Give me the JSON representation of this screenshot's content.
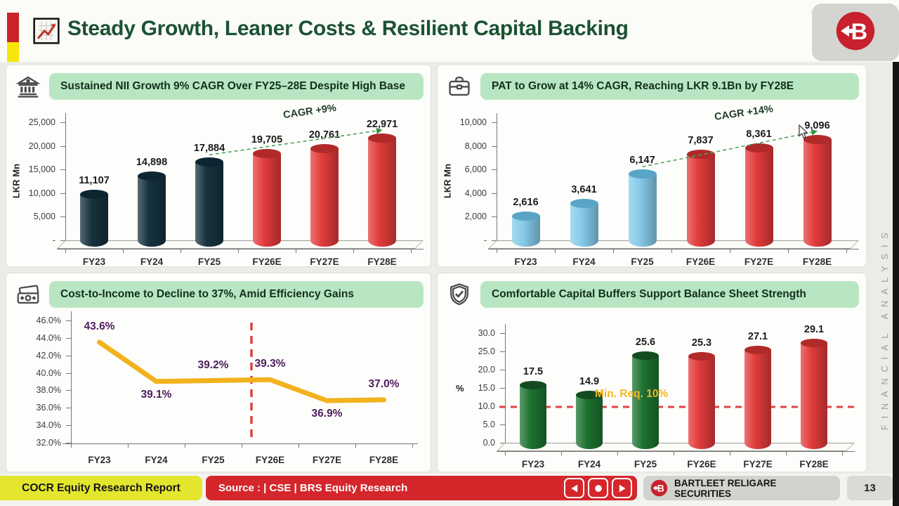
{
  "header": {
    "title": "Steady Growth, Leaner Costs & Resilient Capital Backing",
    "emblem_icon": "growth-chart-icon",
    "logo_icon": "bartleet-logo-icon"
  },
  "side_label": "FINANCIAL ANALYSIS",
  "colors": {
    "accent_red": "#c92429",
    "accent_yellow": "#f6e60a",
    "title_green": "#1b5233",
    "pill_green": "#b9e6c2",
    "footer_red": "#d5262c",
    "footer_yellow": "#e4e62e"
  },
  "footer": {
    "report_label": "COCR Equity Research Report",
    "source_label": "Source : | CSE | BRS Equity Research",
    "brand_label": "BARTLEET RELIGARE SECURITIES",
    "page_number": "13",
    "nav_icons": [
      "prev-icon",
      "stop-icon",
      "next-icon"
    ]
  },
  "chart_data": [
    {
      "id": "nii-growth",
      "type": "bar",
      "icon": "bank-icon",
      "title": "Sustained NII Growth 9% CAGR Over FY25–28E Despite High Base",
      "ylabel": "LKR Mn",
      "xlabel": "",
      "categories": [
        "FY23",
        "FY24",
        "FY25",
        "FY26E",
        "FY27E",
        "FY28E"
      ],
      "values": [
        11107,
        14898,
        17884,
        19705,
        20761,
        22971
      ],
      "labels": [
        "11,107",
        "14,898",
        "17,884",
        "19,705",
        "20,761",
        "22,971"
      ],
      "ylim": [
        0,
        25000
      ],
      "yticks": [
        "25,000",
        "20,000",
        "15,000",
        "10,000",
        "5,000",
        "-"
      ],
      "actual_count": 3,
      "colors": {
        "actual": "#16323e",
        "actual_cap": "#0d2530",
        "forecast": "#e23b3b",
        "forecast_cap": "#b02a2a"
      },
      "trend": {
        "from": 2,
        "to": 5,
        "label": "CAGR +9%"
      },
      "grid": false,
      "legend": "none"
    },
    {
      "id": "pat-growth",
      "type": "bar",
      "icon": "briefcase-icon",
      "title": "PAT to Grow at 14% CAGR, Reaching LKR 9.1Bn by FY28E",
      "ylabel": "LKR Mn",
      "xlabel": "",
      "categories": [
        "FY23",
        "FY24",
        "FY25",
        "FY26E",
        "FY27E",
        "FY28E"
      ],
      "values": [
        2616,
        3641,
        6147,
        7837,
        8361,
        9096
      ],
      "labels": [
        "2,616",
        "3,641",
        "6,147",
        "7,837",
        "8,361",
        "9,096"
      ],
      "ylim": [
        0,
        10000
      ],
      "yticks": [
        "10,000",
        "8,000",
        "6,000",
        "4,000",
        "2,000",
        "-"
      ],
      "actual_count": 3,
      "colors": {
        "actual": "#85cbe9",
        "actual_cap": "#58a5c8",
        "forecast": "#e23b3b",
        "forecast_cap": "#b02a2a"
      },
      "trend": {
        "from": 2,
        "to": 5,
        "label": "CAGR +14%"
      },
      "cursor": true,
      "grid": false,
      "legend": "none"
    },
    {
      "id": "cost-to-income",
      "type": "line",
      "icon": "cash-icon",
      "title": "Cost-to-Income to Decline to 37%, Amid Efficiency Gains",
      "ylabel": "",
      "xlabel": "",
      "categories": [
        "FY23",
        "FY24",
        "FY25",
        "FY26E",
        "FY27E",
        "FY28E"
      ],
      "values": [
        43.6,
        39.1,
        39.2,
        39.3,
        36.9,
        37.0
      ],
      "labels": [
        "43.6%",
        "39.1%",
        "39.2%",
        "39.3%",
        "36.9%",
        "37.0%"
      ],
      "label_pos": [
        "above",
        "below",
        "above",
        "above",
        "below",
        "above"
      ],
      "ylim": [
        32,
        46
      ],
      "yticks": [
        "46.0%",
        "44.0%",
        "42.0%",
        "40.0%",
        "38.0%",
        "36.0%",
        "34.0%",
        "32.0%"
      ],
      "divider_after": 2,
      "line_color": "#f2b21d",
      "label_color": "#4d1d5e",
      "grid": false,
      "legend": "none"
    },
    {
      "id": "capital-buffers",
      "type": "bar",
      "icon": "shield-check-icon",
      "title": "Comfortable Capital Buffers Support Balance Sheet Strength",
      "ylabel": "%",
      "xlabel": "",
      "categories": [
        "FY23",
        "FY24",
        "FY25",
        "FY26E",
        "FY27E",
        "FY28E"
      ],
      "values": [
        17.5,
        14.9,
        25.6,
        25.3,
        27.1,
        29.1
      ],
      "labels": [
        "17.5",
        "14.9",
        "25.6",
        "25.3",
        "27.1",
        "29.1"
      ],
      "ylim": [
        0,
        30
      ],
      "yticks": [
        "30.0",
        "25.0",
        "20.0",
        "15.0",
        "10.0",
        "5.0",
        "0.0"
      ],
      "actual_count": 3,
      "colors": {
        "actual": "#1d7231",
        "actual_cap": "#124c20",
        "forecast": "#e23b3b",
        "forecast_cap": "#b02a2a"
      },
      "ref_line": {
        "value": 10,
        "label": "Min. Req. 10%"
      },
      "grid": false,
      "legend": "none"
    }
  ]
}
